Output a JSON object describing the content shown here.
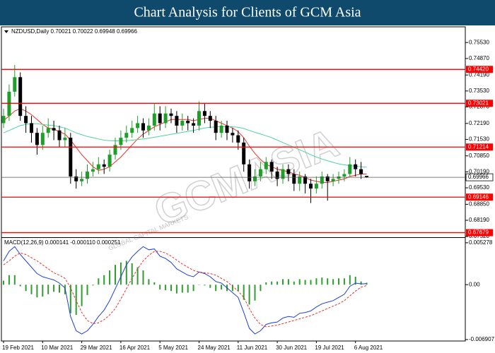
{
  "title": "Chart Analysis for Clients of GCM Asia",
  "watermark": [
    "GCMASIA",
    "GLOBAL CAPITAL MARKETS"
  ],
  "chart_data": [
    {
      "type": "candlestick",
      "label": "NZDUSD,Daily 0.70021 0.70022 0.69948 0.69966",
      "categories": [
        "19 Feb 2021",
        null,
        null,
        null,
        null,
        null,
        null,
        "10 Mar 2021",
        null,
        null,
        null,
        null,
        null,
        null,
        "29 Mar 2021",
        null,
        null,
        null,
        null,
        null,
        null,
        "16 Apr 2021",
        null,
        null,
        null,
        null,
        null,
        null,
        "5 May 2021",
        null,
        null,
        null,
        null,
        null,
        null,
        "24 May 2021",
        null,
        null,
        null,
        null,
        null,
        null,
        "11 Jun 2021",
        null,
        null,
        null,
        null,
        null,
        null,
        "30 Jun 2021",
        null,
        null,
        null,
        null,
        null,
        null,
        "19 Jul 2021",
        null,
        null,
        null,
        null,
        null,
        null,
        "6 Aug 2021",
        null,
        null
      ],
      "open": [
        0.722,
        0.725,
        0.735,
        0.741,
        0.725,
        0.722,
        0.718,
        0.713,
        0.718,
        0.72,
        0.719,
        0.715,
        0.716,
        0.7,
        0.698,
        0.699,
        0.702,
        0.703,
        0.705,
        0.704,
        0.709,
        0.713,
        0.716,
        0.718,
        0.72,
        0.722,
        0.719,
        0.721,
        0.726,
        0.722,
        0.726,
        0.725,
        0.721,
        0.723,
        0.722,
        0.721,
        0.727,
        0.725,
        0.723,
        0.718,
        0.721,
        0.718,
        0.717,
        0.714,
        0.705,
        0.698,
        0.7,
        0.703,
        0.706,
        0.702,
        0.699,
        0.703,
        0.701,
        0.697,
        0.7,
        0.697,
        0.695,
        0.697,
        0.7,
        0.698,
        0.699,
        0.7,
        0.701,
        0.705,
        0.703,
        0.70021
      ],
      "high": [
        0.728,
        0.738,
        0.746,
        0.743,
        0.729,
        0.725,
        0.72,
        0.721,
        0.724,
        0.723,
        0.721,
        0.72,
        0.718,
        0.703,
        0.702,
        0.705,
        0.706,
        0.708,
        0.707,
        0.711,
        0.716,
        0.719,
        0.721,
        0.723,
        0.725,
        0.724,
        0.724,
        0.73,
        0.729,
        0.729,
        0.728,
        0.727,
        0.726,
        0.725,
        0.724,
        0.731,
        0.73,
        0.727,
        0.725,
        0.723,
        0.723,
        0.72,
        0.719,
        0.716,
        0.707,
        0.703,
        0.706,
        0.708,
        0.707,
        0.704,
        0.705,
        0.705,
        0.703,
        0.702,
        0.701,
        0.699,
        0.7,
        0.702,
        0.701,
        0.701,
        0.702,
        0.703,
        0.708,
        0.707,
        0.706,
        0.70022
      ],
      "low": [
        0.72,
        0.723,
        0.733,
        0.723,
        0.718,
        0.714,
        0.709,
        0.711,
        0.716,
        0.715,
        0.712,
        0.712,
        0.697,
        0.695,
        0.696,
        0.697,
        0.7,
        0.701,
        0.701,
        0.702,
        0.707,
        0.711,
        0.714,
        0.716,
        0.718,
        0.716,
        0.717,
        0.719,
        0.719,
        0.72,
        0.722,
        0.718,
        0.719,
        0.719,
        0.718,
        0.719,
        0.722,
        0.72,
        0.715,
        0.716,
        0.715,
        0.714,
        0.711,
        0.702,
        0.695,
        0.696,
        0.698,
        0.701,
        0.699,
        0.696,
        0.697,
        0.698,
        0.694,
        0.694,
        0.693,
        0.689,
        0.693,
        0.695,
        0.69,
        0.696,
        0.697,
        0.698,
        0.7,
        0.7,
        0.699,
        0.69948
      ],
      "close": [
        0.725,
        0.735,
        0.741,
        0.725,
        0.722,
        0.718,
        0.713,
        0.718,
        0.72,
        0.719,
        0.715,
        0.716,
        0.7,
        0.698,
        0.699,
        0.702,
        0.703,
        0.705,
        0.704,
        0.709,
        0.713,
        0.716,
        0.718,
        0.72,
        0.722,
        0.719,
        0.721,
        0.726,
        0.722,
        0.726,
        0.725,
        0.721,
        0.723,
        0.722,
        0.721,
        0.727,
        0.725,
        0.723,
        0.718,
        0.721,
        0.718,
        0.717,
        0.714,
        0.705,
        0.698,
        0.7,
        0.703,
        0.706,
        0.702,
        0.699,
        0.703,
        0.701,
        0.697,
        0.7,
        0.697,
        0.695,
        0.697,
        0.7,
        0.698,
        0.699,
        0.7,
        0.701,
        0.705,
        0.703,
        0.701,
        0.69966
      ],
      "up_color": "#1f9e2a",
      "down_color": "#000000",
      "lines": [
        {
          "color": "#e8332a",
          "values": [
            0.723,
            0.725,
            0.727,
            0.728,
            0.727,
            0.7255,
            0.7235,
            0.7215,
            0.72,
            0.7195,
            0.7185,
            0.7175,
            0.715,
            0.712,
            0.709,
            0.7065,
            0.704,
            0.7025,
            0.703,
            0.704,
            0.706,
            0.708,
            0.7105,
            0.713,
            0.7155,
            0.7175,
            0.719,
            0.7205,
            0.7215,
            0.7225,
            0.7235,
            0.7235,
            0.7235,
            0.7235,
            0.723,
            0.7235,
            0.724,
            0.724,
            0.723,
            0.722,
            0.721,
            0.72,
            0.7185,
            0.716,
            0.7125,
            0.7095,
            0.707,
            0.705,
            0.704,
            0.703,
            0.7025,
            0.702,
            0.701,
            0.7005,
            0.6995,
            0.6985,
            0.698,
            0.6975,
            0.6975,
            0.698,
            0.6985,
            0.699,
            0.7,
            0.7005,
            0.701,
            0.701
          ]
        },
        {
          "color": "#4fd59c",
          "values": [
            0.718,
            0.719,
            0.72,
            0.721,
            0.7215,
            0.7218,
            0.7218,
            0.7215,
            0.7212,
            0.721,
            0.7205,
            0.72,
            0.719,
            0.718,
            0.7172,
            0.7165,
            0.716,
            0.7155,
            0.715,
            0.7148,
            0.7147,
            0.7147,
            0.7148,
            0.715,
            0.7152,
            0.7155,
            0.7158,
            0.7162,
            0.7166,
            0.717,
            0.7174,
            0.7178,
            0.7182,
            0.7186,
            0.719,
            0.7195,
            0.72,
            0.7203,
            0.7205,
            0.7206,
            0.7206,
            0.7205,
            0.7203,
            0.7198,
            0.719,
            0.7182,
            0.7175,
            0.7168,
            0.716,
            0.715,
            0.714,
            0.713,
            0.712,
            0.711,
            0.71,
            0.709,
            0.708,
            0.7072,
            0.7065,
            0.7058,
            0.7052,
            0.7048,
            0.7045,
            0.7042,
            0.704,
            0.7038
          ]
        }
      ],
      "levels": [
        {
          "value": 0.7442,
          "label": "0.74420"
        },
        0.73021,
        0.71214,
        0.69146,
        0.67679
      ],
      "level_color": "#ff0000",
      "last": 0.69966,
      "ylim": [
        0.6752,
        0.7612
      ],
      "yticks": [
        {
          "value": 0.7553,
          "label": "0.75530"
        },
        {
          "value": 0.7487,
          "label": "0.74870"
        },
        {
          "value": 0.7419,
          "label": "0.74190"
        },
        {
          "value": 0.7353,
          "label": "0.73530"
        },
        {
          "value": 0.7287,
          "label": "0.72870"
        },
        {
          "value": 0.7219,
          "label": "0.72190"
        },
        {
          "value": 0.7153,
          "label": "0.71530"
        },
        {
          "value": 0.7085,
          "label": "0.70850"
        },
        {
          "value": 0.7019,
          "label": "0.70190"
        },
        {
          "value": 0.6953,
          "label": "0.69530"
        },
        {
          "value": 0.6885,
          "label": "0.68850"
        },
        {
          "value": 0.6819,
          "label": "0.68190"
        },
        {
          "value": 0.6752,
          "label": "0.67520"
        }
      ]
    },
    {
      "type": "macd",
      "label": "MACD(12,26,9) 0.000141 -0.000110 0.000251",
      "histogram": {
        "color": "#2e9e2e",
        "values": [
          0.0005,
          0.0012,
          0.0012,
          -0.0002,
          -0.0008,
          -0.0012,
          -0.0016,
          -0.0015,
          -0.0012,
          -0.0009,
          -0.001,
          -0.0012,
          -0.0036,
          -0.0038,
          -0.0027,
          -0.0013,
          -0.0001,
          0.0008,
          0.0012,
          0.0018,
          0.0025,
          0.0028,
          0.003,
          0.0027,
          0.0022,
          0.0018,
          0.0007,
          0.0003,
          -0.0006,
          -0.0007,
          -0.0008,
          -0.0011,
          -0.001,
          -0.001,
          -0.0008,
          0,
          -0.0001,
          -0.0004,
          -0.0008,
          -0.0006,
          -0.0008,
          -0.0008,
          -0.0008,
          -0.0019,
          -0.0025,
          -0.002,
          -0.0008,
          0.0003,
          0.0004,
          0.0004,
          0.0007,
          0.0007,
          0.0004,
          0.0007,
          0.0006,
          0.0006,
          0.0008,
          0.0009,
          0.0008,
          0.0007,
          0.0008,
          0.0008,
          0.0012,
          0.001,
          0.0004,
          0.000251
        ]
      },
      "series": [
        {
          "color": "#1f3fd6",
          "dashed": false,
          "values": [
            0.003,
            0.0042,
            0.0048,
            0.0038,
            0.003,
            0.0022,
            0.0014,
            0.001,
            0.0008,
            0.0006,
            0.0002,
            -0.0004,
            -0.004,
            -0.0058,
            -0.0062,
            -0.0058,
            -0.005,
            -0.004,
            -0.0032,
            -0.002,
            -0.0005,
            0.001,
            0.0025,
            0.0035,
            0.0042,
            0.0048,
            0.0044,
            0.0045,
            0.0036,
            0.0033,
            0.0028,
            0.002,
            0.0016,
            0.0012,
            0.001,
            0.0016,
            0.0014,
            0.001,
            0.0004,
            0.0002,
            -0.0004,
            -0.001,
            -0.0016,
            -0.0035,
            -0.0055,
            -0.0062,
            -0.0058,
            -0.005,
            -0.0048,
            -0.0047,
            -0.0042,
            -0.004,
            -0.0041,
            -0.0036,
            -0.0035,
            -0.0033,
            -0.0028,
            -0.0024,
            -0.0022,
            -0.002,
            -0.0016,
            -0.0012,
            -0.0002,
            0.0002,
            0.0001,
            0.000141
          ]
        },
        {
          "color": "#e8332a",
          "dashed": true,
          "values": [
            0.0025,
            0.003,
            0.0036,
            0.004,
            0.0038,
            0.0034,
            0.003,
            0.0025,
            0.002,
            0.0015,
            0.0012,
            0.0008,
            -0.0004,
            -0.002,
            -0.0035,
            -0.0045,
            -0.0049,
            -0.0048,
            -0.0044,
            -0.0038,
            -0.003,
            -0.0018,
            -0.0005,
            0.0008,
            0.002,
            0.003,
            0.0037,
            0.0042,
            0.0042,
            0.004,
            0.0036,
            0.0031,
            0.0026,
            0.0022,
            0.0018,
            0.0016,
            0.0015,
            0.0014,
            0.0012,
            0.0008,
            0.0004,
            -0.0002,
            -0.0008,
            -0.0016,
            -0.003,
            -0.0042,
            -0.005,
            -0.0053,
            -0.0052,
            -0.0051,
            -0.0049,
            -0.0047,
            -0.0045,
            -0.0043,
            -0.0041,
            -0.0039,
            -0.0036,
            -0.0033,
            -0.003,
            -0.0027,
            -0.0024,
            -0.002,
            -0.0014,
            -0.0008,
            -0.0003,
            -0.00011
          ]
        }
      ],
      "ylim": [
        -0.007,
        0.0058
      ],
      "yticks": [
        0.005278,
        {
          "value": 0,
          "label": "0.00"
        },
        -0.006907
      ]
    }
  ]
}
